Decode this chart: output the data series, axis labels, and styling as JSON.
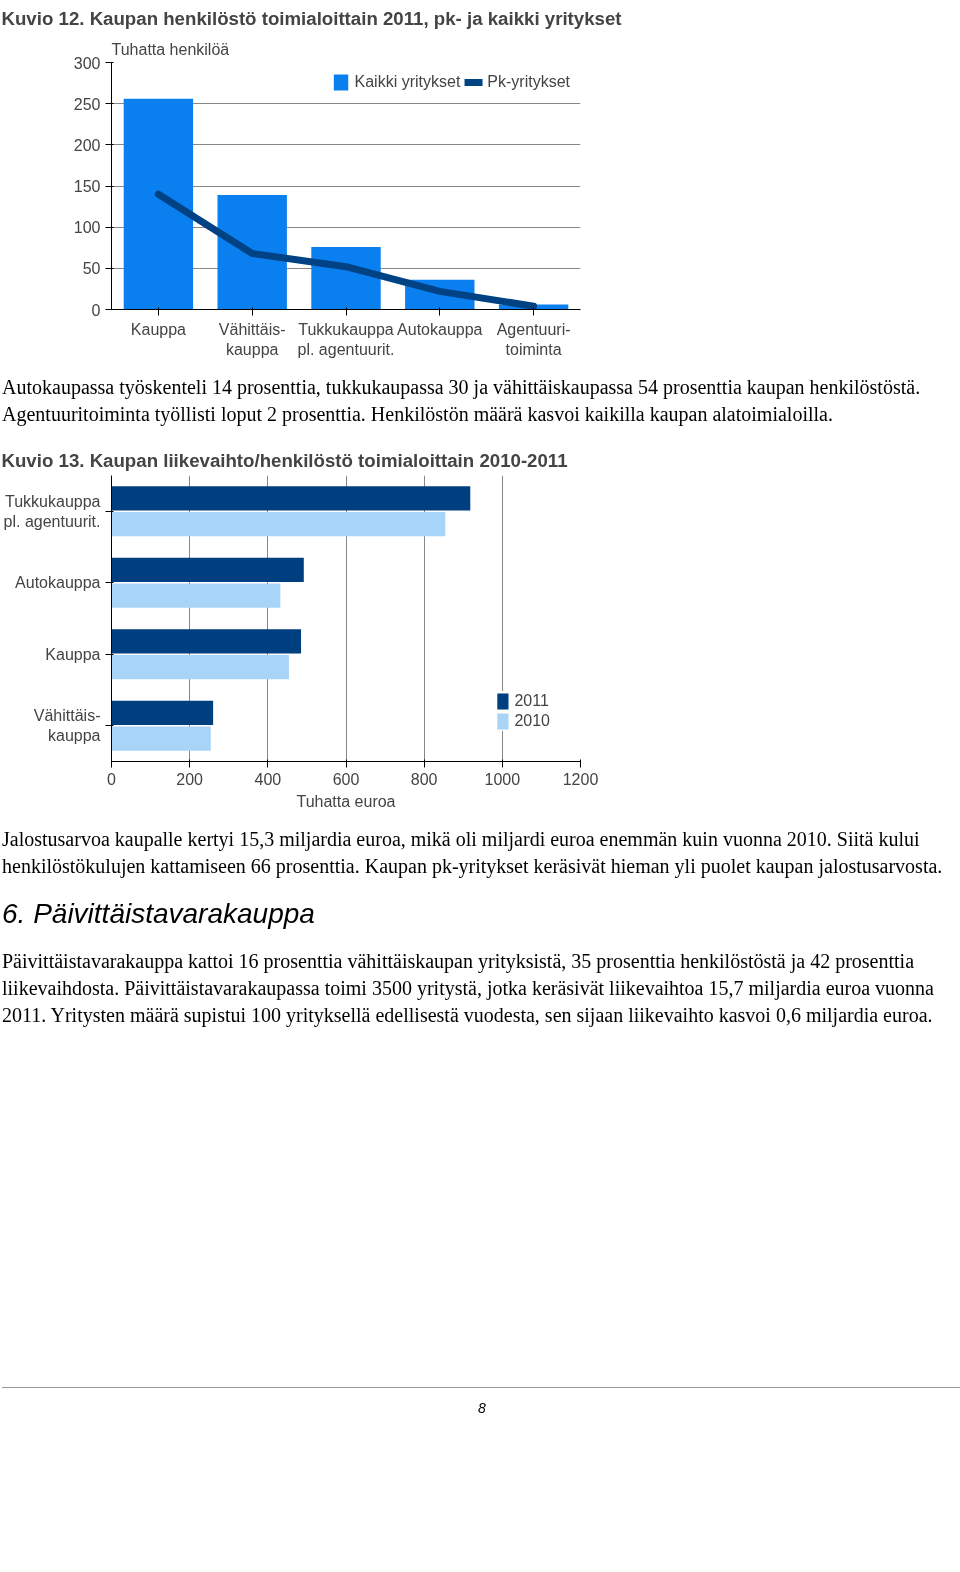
{
  "chart_data": [
    {
      "type": "bar",
      "title": "Kuvio 12. Kaupan henkilöstö toimialoittain 2011, pk- ja kaikki yritykset",
      "ylabel": "Tuhatta henkilöä",
      "categories": [
        "Kauppa",
        "Vähittäis-\nkauppa",
        "Tukkukauppa\npl. agentuurit.",
        "Autokauppa",
        "Agentuuri-\ntoiminta"
      ],
      "series": [
        {
          "name": "Kaikki yritykset",
          "type": "bar",
          "color": "#0a80f0",
          "values": [
            256,
            139,
            76,
            36,
            6
          ]
        },
        {
          "name": "Pk-yritykset",
          "type": "line",
          "color": "#004283",
          "values": [
            140,
            68,
            52,
            22,
            4
          ]
        }
      ],
      "ylim": [
        0,
        300
      ],
      "yticks": [
        0,
        50,
        100,
        150,
        200,
        250,
        300
      ],
      "grid": "y",
      "legend": "top right",
      "marker": "none",
      "line_style": "solid",
      "annotations": [
        "Autokaupassa työskenteli 14 prosenttia, tukkukaupassa 30 ja vähittäiskaupassa 54 prosenttia kaupan henkilöstöstä. Agentuuritoiminta työllisti loput 2 prosenttia. Henkilöstön määrä kasvoi kaikilla kaupan alatoimialoilla."
      ]
    },
    {
      "type": "bar",
      "orientation": "horizontal",
      "title": "Kuvio 13. Kaupan liikevaihto/henkilöstö toimialoittain 2010-2011",
      "xlabel": "Tuhatta euroa",
      "categories": [
        "Tukkukauppa\npl. agentuurit.",
        "Autokauppa",
        "Kauppa",
        "Vähittäis-\nkauppa"
      ],
      "series": [
        {
          "name": "2011",
          "color": "#003f7f",
          "values": [
            918,
            492,
            485,
            260
          ]
        },
        {
          "name": "2010",
          "color": "#a8d4f8",
          "values": [
            854,
            432,
            454,
            254
          ]
        }
      ],
      "xlim": [
        0,
        1200
      ],
      "xticks": [
        0,
        200,
        400,
        600,
        800,
        1000,
        1200
      ],
      "grid": "x",
      "legend": "bottom right",
      "annotations": [
        "Jalostusarvoa kaupalle kertyi 15,3 miljardia euroa, mikä oli miljardi euroa enemmän kuin vuonna 2010. Siitä kului henkilöstökulujen kattamiseen 66 prosenttia. Kaupan pk-yritykset keräsivät hieman yli puolet kaupan jalostusarvosta.",
        "6. Päivittäistavarakauppa",
        "Päivittäistavarakauppa kattoi 16 prosenttia vähittäiskaupan yrityksistä, 35 prosenttia henkilöstöstä ja 42 prosenttia liikevaihdosta. Päivittäistavarakaupassa toimi 3500 yritystä, jotka keräsivät liikevaihtoa 15,7 miljardia euroa vuonna 2011. Yritysten määrä supistui 100 yrityksellä edellisestä vuodesta, sen sijaan liikevaihto kasvoi 0,6 miljardia euroa.",
        "8"
      ]
    }
  ]
}
